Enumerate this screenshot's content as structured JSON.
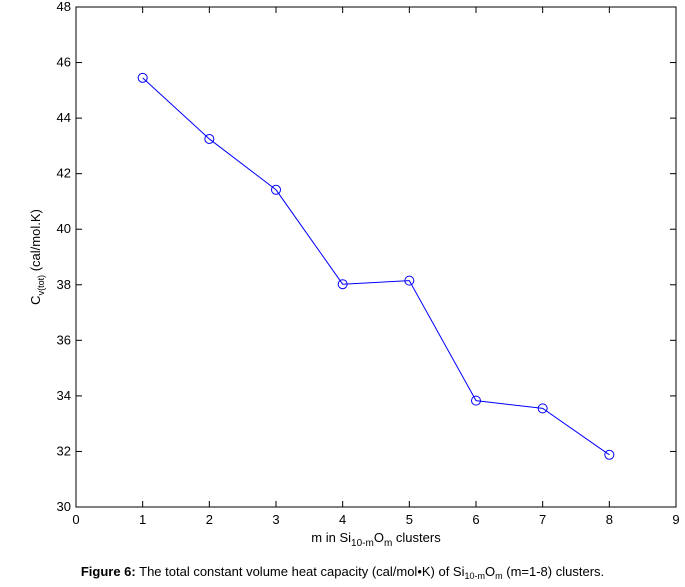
{
  "chart_data": {
    "type": "line",
    "x": [
      1,
      2,
      3,
      4,
      5,
      6,
      7,
      8
    ],
    "series": [
      {
        "values": [
          45.45,
          43.25,
          41.42,
          38.02,
          38.15,
          33.83,
          33.55,
          31.88
        ]
      }
    ],
    "xlim": [
      0,
      9
    ],
    "ylim": [
      30,
      48
    ],
    "xticks": [
      "0",
      "1",
      "2",
      "3",
      "4",
      "5",
      "6",
      "7",
      "8",
      "9"
    ],
    "yticks": [
      "30",
      "32",
      "34",
      "36",
      "38",
      "40",
      "42",
      "44",
      "46",
      "48"
    ],
    "xlabel": {
      "pre": "m in Si",
      "sub1": "10-m",
      "mid": "O",
      "sub2": "m",
      "post": " clusters"
    },
    "ylabel": {
      "pre": "C",
      "sub": "v(tot)",
      "post": " (cal/mol.K)"
    },
    "grid": false,
    "marker": "open-circle",
    "line_color": "#0000ff",
    "marker_color": "#0000ff"
  },
  "caption": {
    "label": "Figure 6:",
    "text_pre": " The total constant volume heat capacity (cal/mol•K) of Si",
    "sub1": "10-m",
    "mid": "O",
    "sub2": "m",
    "text_post": " (m=1-8) clusters."
  }
}
